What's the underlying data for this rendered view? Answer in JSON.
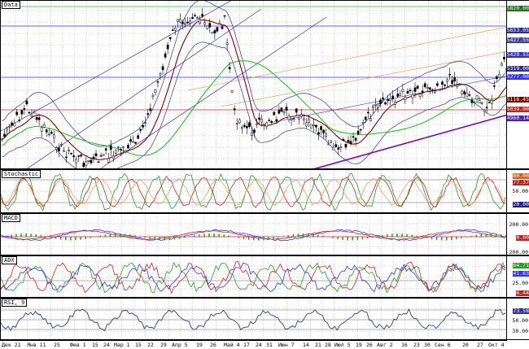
{
  "panes": {
    "price": {
      "title": "Data",
      "scale": [
        "5820.00",
        "5653.05",
        "5429.55",
        "5277.00",
        "5116.45",
        "4960.14",
        "5427.55",
        "5039.00",
        "4960.14"
      ],
      "marker": "5319.00"
    },
    "stochastic": {
      "title": "Stochastic",
      "scale": [
        "80.00",
        "77.37",
        "50.00",
        "20.00"
      ]
    },
    "macd": {
      "title": "MACD",
      "scale": [
        "200.00",
        "0.00",
        "-200.00"
      ]
    },
    "adx": {
      "title": "ADX",
      "scale": [
        "64.71",
        "41.63",
        "25.00",
        "6.44"
      ]
    },
    "rsi": {
      "title": "RSI, 9",
      "scale": [
        "73.58",
        "50.00",
        "30.00"
      ]
    }
  },
  "dates": [
    "Дек 21",
    "Янв 11",
    "25",
    "Фев 1",
    "15",
    "24",
    "Мар 1",
    "15",
    "22",
    "29",
    "Апр 5",
    "19",
    "26",
    "Май 4",
    "17",
    "24",
    "31",
    "Июн 7",
    "14",
    "21",
    "28",
    "Июл 5",
    "19",
    "26",
    "Авг 2",
    "16",
    "23",
    "30",
    "Сен 6",
    "20",
    "27",
    "Окт 4"
  ],
  "colors": {
    "bg": "#ffffff",
    "grid": "#9a9a9a",
    "candle": "#000000",
    "band": "#2d2db0",
    "ma_red": "#8b0000",
    "ma_green": "#22c422",
    "purple": "#7a00c8",
    "orange": "#e6a060",
    "blue": "#3030ff",
    "red": "#d02020",
    "green": "#20a020",
    "navy": "#202080"
  }
}
